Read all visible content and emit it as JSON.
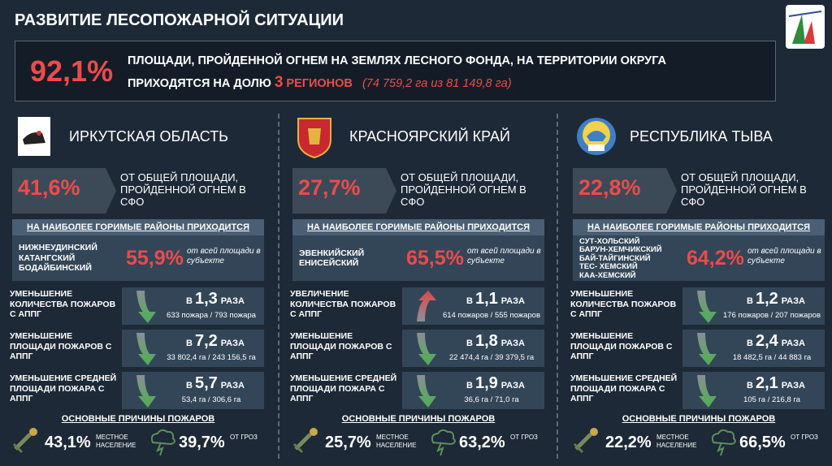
{
  "header": {
    "title": "РАЗВИТИЕ ЛЕСОПОЖАРНОЙ СИТУАЦИИ"
  },
  "summary": {
    "percent": "92,1%",
    "line1": "ПЛОЩАДИ, ПРОЙДЕННОЙ ОГНЕМ НА ЗЕМЛЯХ ЛЕСНОГО ФОНДА, НА ТЕРРИТОРИИ ОКРУГА",
    "line2": "ПРИХОДЯТСЯ НА ДОЛЮ",
    "count": "3",
    "count_unit": "РЕГИОНОВ",
    "note": "(74 759,2 га из 81 149,8 га)"
  },
  "regions": [
    {
      "name": "ИРКУТСКАЯ ОБЛАСТЬ",
      "share": "41,6%",
      "share_text": "ОТ ОБЩЕЙ ПЛОЩАДИ, ПРОЙДЕННОЙ ОГНЕМ В СФО",
      "districts_header": "НА НАИБОЛЕЕ ГОРИМЫЕ РАЙОНЫ ПРИХОДИТСЯ",
      "districts": [
        "НИЖНЕУДИНСКИЙ",
        "КАТАНГСКИЙ",
        "БОДАЙБИНСКИЙ"
      ],
      "districts_share": "55,9%",
      "districts_note": "от всей площади в субъекте",
      "metrics": [
        {
          "label": "УМЕНЬШЕНИЕ КОЛИЧЕСТВА ПОЖАРОВ С АППГ",
          "direction": "down",
          "prefix": "В",
          "value": "1,3",
          "unit": "РАЗА",
          "detail": "633 пожара / 793 пожара"
        },
        {
          "label": "УМЕНЬШЕНИЕ ПЛОЩАДИ ПОЖАРОВ С АППГ",
          "direction": "down",
          "prefix": "В",
          "value": "7,2",
          "unit": "РАЗА",
          "detail": "33 802,4 га / 243 156,5 га"
        },
        {
          "label": "УМЕНЬШЕНИЕ СРЕДНЕЙ ПЛОЩАДИ ПОЖАРА С АППГ",
          "direction": "down",
          "prefix": "В",
          "value": "5,7",
          "unit": "РАЗА",
          "detail": "53,4 га / 306,6 га"
        }
      ],
      "causes_header": "ОСНОВНЫЕ ПРИЧИНЫ ПОЖАРОВ",
      "causes": [
        {
          "value": "43,1%",
          "label": "МЕСТНОЕ НАСЕЛЕНИЕ"
        },
        {
          "value": "39,7%",
          "label": "ОТ ГРОЗ"
        }
      ]
    },
    {
      "name": "КРАСНОЯРСКИЙ КРАЙ",
      "share": "27,7%",
      "share_text": "ОТ ОБЩЕЙ ПЛОЩАДИ, ПРОЙДЕННОЙ ОГНЕМ В СФО",
      "districts_header": "НА НАИБОЛЕЕ ГОРИМЫЕ РАЙОНЫ ПРИХОДИТСЯ",
      "districts": [
        "ЭВЕНКИЙСКИЙ",
        "ЕНИСЕЙСКИЙ"
      ],
      "districts_share": "65,5%",
      "districts_note": "от всей площади в субъекте",
      "metrics": [
        {
          "label": "УВЕЛИЧЕНИЕ КОЛИЧЕСТВА ПОЖАРОВ С АППГ",
          "direction": "up",
          "prefix": "В",
          "value": "1,1",
          "unit": "РАЗА",
          "detail": "614 пожаров / 555 пожаров"
        },
        {
          "label": "УМЕНЬШЕНИЕ ПЛОЩАДИ ПОЖАРОВ С АППГ",
          "direction": "down",
          "prefix": "В",
          "value": "1,8",
          "unit": "РАЗА",
          "detail": "22 474,4 га / 39 379,5 га"
        },
        {
          "label": "УМЕНЬШЕНИЕ СРЕДНЕЙ ПЛОЩАДИ ПОЖАРА С АППГ",
          "direction": "down",
          "prefix": "В",
          "value": "1,9",
          "unit": "РАЗА",
          "detail": "36,6 га / 71,0 га"
        }
      ],
      "causes_header": "ОСНОВНЫЕ ПРИЧИНЫ ПОЖАРОВ",
      "causes": [
        {
          "value": "25,7%",
          "label": "МЕСТНОЕ НАСЕЛЕНИЕ"
        },
        {
          "value": "63,2%",
          "label": "ОТ ГРОЗ"
        }
      ]
    },
    {
      "name": "РЕСПУБЛИКА ТЫВА",
      "share": "22,8%",
      "share_text": "ОТ ОБЩЕЙ ПЛОЩАДИ, ПРОЙДЕННОЙ ОГНЕМ В СФО",
      "districts_header": "НА НАИБОЛЕЕ ГОРИМЫЕ РАЙОНЫ ПРИХОДИТСЯ",
      "districts": [
        "СУТ-ХОЛЬСКИЙ",
        "БАРУН-ХЕМЧИКСКИЙ",
        "БАЙ-ТАЙГИНСКИЙ",
        "ТЕС- ХЕМСКИЙ",
        "КАА-ХЕМСКИЙ"
      ],
      "districts_share": "64,2%",
      "districts_note": "от всей площади в субъекте",
      "metrics": [
        {
          "label": "УМЕНЬШЕНИЕ КОЛИЧЕСТВА ПОЖАРОВ С АППГ",
          "direction": "down",
          "prefix": "В",
          "value": "1,2",
          "unit": "РАЗА",
          "detail": "176 пожаров / 207 пожаров"
        },
        {
          "label": "УМЕНЬШЕНИЕ ПЛОЩАДИ ПОЖАРОВ С АППГ",
          "direction": "down",
          "prefix": "В",
          "value": "2,4",
          "unit": "РАЗА",
          "detail": "18 482,5 га / 44 883 га"
        },
        {
          "label": "УМЕНЬШЕНИЕ СРЕДНЕЙ ПЛОЩАДИ ПОЖАРА С АППГ",
          "direction": "down",
          "prefix": "В",
          "value": "2,1",
          "unit": "РАЗА",
          "detail": "105 га / 216,8 га"
        }
      ],
      "causes_header": "ОСНОВНЫЕ ПРИЧИНЫ ПОЖАРОВ",
      "causes": [
        {
          "value": "22,2%",
          "label": "МЕСТНОЕ НАСЕЛЕНИЕ"
        },
        {
          "value": "66,5%",
          "label": "ОТ ГРОЗ"
        }
      ]
    }
  ]
}
